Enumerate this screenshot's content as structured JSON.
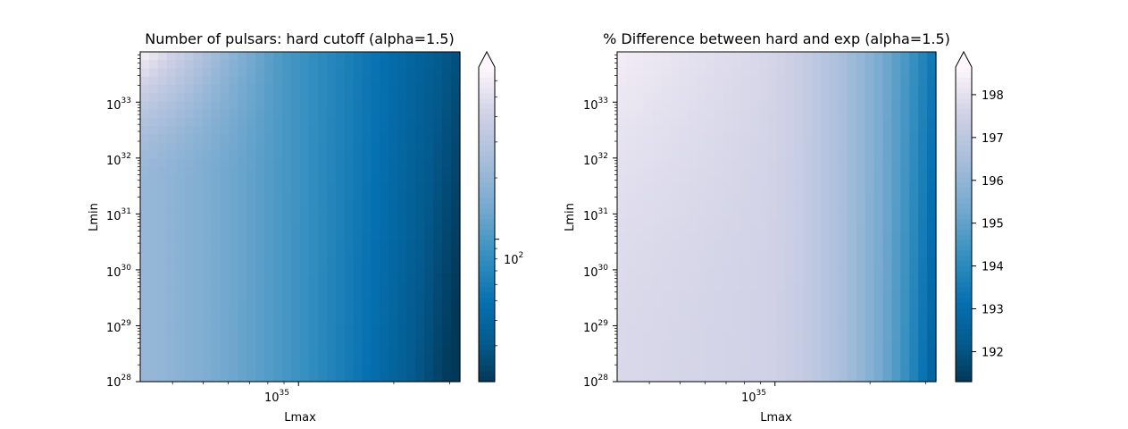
{
  "chart_data": [
    {
      "type": "heatmap",
      "title": "Number of pulsars: hard cutoff (alpha=1.5)",
      "xlabel": "Lmax",
      "ylabel": "Lmin",
      "x_scale": "log",
      "y_scale": "log",
      "x_range": [
        "1e34",
        "1e36"
      ],
      "y_range": [
        "1e28",
        "1e33.9"
      ],
      "x_ticks": [
        {
          "base": "10",
          "exp": "35"
        }
      ],
      "y_ticks": [
        {
          "base": "10",
          "exp": "28"
        },
        {
          "base": "10",
          "exp": "29"
        },
        {
          "base": "10",
          "exp": "30"
        },
        {
          "base": "10",
          "exp": "31"
        },
        {
          "base": "10",
          "exp": "32"
        },
        {
          "base": "10",
          "exp": "33"
        }
      ],
      "colormap": "PuBu_r",
      "color_scale": "log",
      "colorbar": {
        "extend": "max",
        "ticks": [
          {
            "base": "10",
            "exp": "2"
          }
        ]
      },
      "color_range": [
        20,
        700
      ]
    },
    {
      "type": "heatmap",
      "title": "% Difference between hard and exp (alpha=1.5)",
      "xlabel": "Lmax",
      "ylabel": "Lmin",
      "x_scale": "log",
      "y_scale": "log",
      "x_range": [
        "1e34",
        "1e36"
      ],
      "y_range": [
        "1e28",
        "1e33.9"
      ],
      "x_ticks": [
        {
          "base": "10",
          "exp": "35"
        }
      ],
      "y_ticks": [
        {
          "base": "10",
          "exp": "28"
        },
        {
          "base": "10",
          "exp": "29"
        },
        {
          "base": "10",
          "exp": "30"
        },
        {
          "base": "10",
          "exp": "31"
        },
        {
          "base": "10",
          "exp": "32"
        },
        {
          "base": "10",
          "exp": "33"
        }
      ],
      "colormap": "PuBu_r",
      "color_scale": "linear",
      "colorbar": {
        "extend": "max",
        "ticks": [
          "192",
          "193",
          "194",
          "195",
          "196",
          "197",
          "198"
        ]
      },
      "color_range": [
        191.3,
        199
      ]
    }
  ]
}
